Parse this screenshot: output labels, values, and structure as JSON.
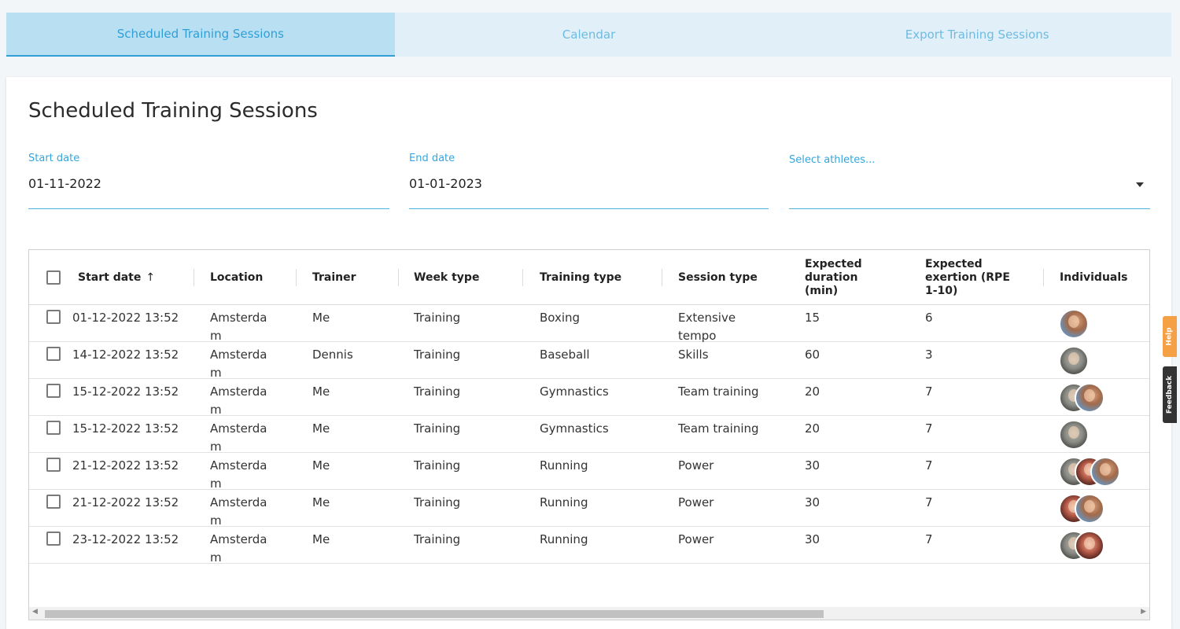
{
  "tabs": [
    {
      "label": "Scheduled Training Sessions",
      "active": true
    },
    {
      "label": "Calendar",
      "active": false
    },
    {
      "label": "Export Training Sessions",
      "active": false
    }
  ],
  "page": {
    "title": "Scheduled Training Sessions"
  },
  "filters": {
    "start_date": {
      "label": "Start date",
      "value": "01-11-2022"
    },
    "end_date": {
      "label": "End date",
      "value": "01-01-2023"
    },
    "athletes": {
      "label": "Select athletes...",
      "value": ""
    }
  },
  "table": {
    "columns": {
      "start_date": "Start date",
      "location": "Location",
      "trainer": "Trainer",
      "week_type": "Week type",
      "training_type": "Training type",
      "session_type": "Session type",
      "expected_duration": "Expected duration (min)",
      "expected_exertion": "Expected exertion (RPE 1-10)",
      "individuals": "Individuals"
    },
    "sort_icon": "arrow-up-icon",
    "rows": [
      {
        "start": "01-12-2022 13:52",
        "location": "Amsterdam",
        "trainer": "Me",
        "week": "Training",
        "training": "Boxing",
        "session": "Extensive tempo",
        "duration": "15",
        "exertion": "6",
        "avatars": [
          "a1"
        ]
      },
      {
        "start": "14-12-2022 13:52",
        "location": "Amsterdam",
        "trainer": "Dennis",
        "week": "Training",
        "training": "Baseball",
        "session": "Skills",
        "duration": "60",
        "exertion": "3",
        "avatars": [
          "a2"
        ]
      },
      {
        "start": "15-12-2022 13:52",
        "location": "Amsterdam",
        "trainer": "Me",
        "week": "Training",
        "training": "Gymnastics",
        "session": "Team training",
        "duration": "20",
        "exertion": "7",
        "avatars": [
          "a2",
          "a1"
        ]
      },
      {
        "start": "15-12-2022 13:52",
        "location": "Amsterdam",
        "trainer": "Me",
        "week": "Training",
        "training": "Gymnastics",
        "session": "Team training",
        "duration": "20",
        "exertion": "7",
        "avatars": [
          "a2"
        ]
      },
      {
        "start": "21-12-2022 13:52",
        "location": "Amsterdam",
        "trainer": "Me",
        "week": "Training",
        "training": "Running",
        "session": "Power",
        "duration": "30",
        "exertion": "7",
        "avatars": [
          "a2",
          "a3",
          "a1"
        ]
      },
      {
        "start": "21-12-2022 13:52",
        "location": "Amsterdam",
        "trainer": "Me",
        "week": "Training",
        "training": "Running",
        "session": "Power",
        "duration": "30",
        "exertion": "7",
        "avatars": [
          "a3",
          "a1"
        ]
      },
      {
        "start": "23-12-2022 13:52",
        "location": "Amsterdam",
        "trainer": "Me",
        "week": "Training",
        "training": "Running",
        "session": "Power",
        "duration": "30",
        "exertion": "7",
        "avatars": [
          "a2",
          "a3"
        ]
      }
    ]
  },
  "side": {
    "help": "Help",
    "feedback": "Feedback"
  },
  "colors": {
    "accent": "#2f9fd6",
    "tab_bg": "#e1f0f8",
    "help": "#f5a044",
    "feedback": "#333333"
  }
}
